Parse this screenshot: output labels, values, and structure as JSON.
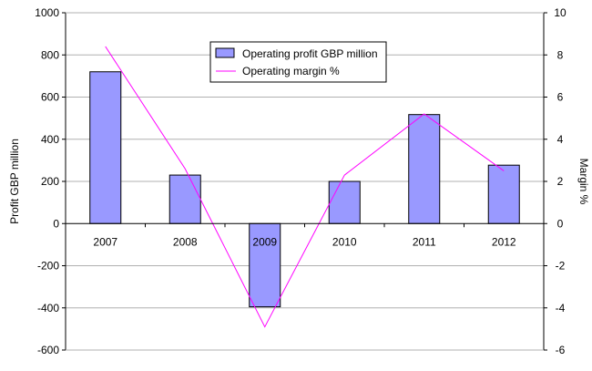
{
  "chart_data": {
    "type": "bar+line",
    "categories": [
      "2007",
      "2008",
      "2009",
      "2010",
      "2011",
      "2012"
    ],
    "series": [
      {
        "name": "Operating profit GBP million",
        "type": "bar",
        "axis": "left",
        "values": [
          720,
          230,
          -395,
          200,
          517,
          277
        ],
        "color": "#9999ff"
      },
      {
        "name": "Operating margin %",
        "type": "line",
        "axis": "right",
        "values": [
          8.4,
          2.6,
          -4.9,
          2.3,
          5.2,
          2.5
        ],
        "color": "#ff00ff"
      }
    ],
    "ylabel": "Profit GBP million",
    "y2label": "Margin %",
    "ylim": [
      -600,
      1000
    ],
    "y2lim": [
      -6,
      10
    ],
    "yticks": [
      "1000",
      "800",
      "600",
      "400",
      "200",
      "0",
      "-200",
      "-400",
      "-600"
    ],
    "y2ticks": [
      "10",
      "8",
      "6",
      "4",
      "2",
      "0",
      "-2",
      "-4",
      "-6"
    ],
    "grid": true,
    "legend_position": "top-center"
  }
}
